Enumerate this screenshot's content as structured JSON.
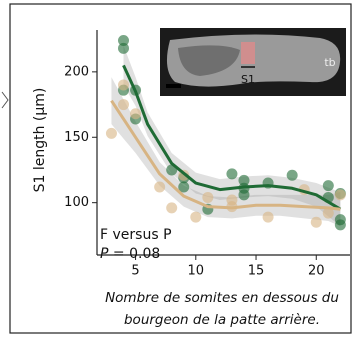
{
  "chart_data": {
    "type": "scatter",
    "y_label": "S1 length (μm)",
    "x_label": [
      "Nombre de somites en dessous du",
      "bourgeon de la patte arrière."
    ],
    "annotations": [
      "F versus P",
      "P = 0.08"
    ],
    "xlim": [
      1.8,
      22.8
    ],
    "ylim": [
      60,
      232
    ],
    "xticks": [
      5,
      10,
      15,
      20
    ],
    "yticks": [
      100,
      150,
      200
    ],
    "inset": {
      "labels": [
        "S1",
        "tb"
      ]
    },
    "series": [
      {
        "color": "#1f6b35",
        "x": [
          4,
          4,
          4,
          5,
          5,
          8,
          9,
          9,
          11,
          13,
          14,
          14,
          14,
          16,
          18,
          21,
          21,
          22,
          22,
          22
        ],
        "values": [
          224,
          218,
          186,
          186,
          164,
          125,
          112,
          119,
          95,
          122,
          117,
          111,
          106,
          115,
          121,
          113,
          104,
          107,
          87,
          83
        ],
        "fit_x": [
          4,
          5,
          6,
          8,
          10,
          12,
          14,
          16,
          18,
          20,
          22
        ],
        "fit_values": [
          205,
          185,
          160,
          130,
          115,
          110,
          112,
          113,
          111,
          106,
          95
        ],
        "band_lower": [
          190,
          174,
          151,
          122,
          107,
          102,
          104,
          105,
          103,
          97,
          82
        ],
        "band_upper": [
          220,
          196,
          169,
          138,
          123,
          118,
          120,
          121,
          119,
          115,
          108
        ]
      },
      {
        "color": "#d7b483",
        "x": [
          3,
          4,
          4,
          5,
          7,
          8,
          9,
          10,
          11,
          13,
          13,
          16,
          19,
          20,
          21,
          22
        ],
        "values": [
          153,
          190,
          175,
          168,
          112,
          96,
          121,
          89,
          104,
          102,
          97,
          89,
          110,
          85,
          92,
          106
        ],
        "fit_x": [
          3,
          5,
          7,
          9,
          11,
          13,
          15,
          17,
          19,
          21,
          22
        ],
        "fit_values": [
          178,
          150,
          122,
          105,
          97,
          96,
          98,
          98,
          97,
          96,
          95
        ],
        "band_lower": [
          160,
          138,
          113,
          97,
          89,
          88,
          90,
          90,
          88,
          86,
          82
        ],
        "band_upper": [
          196,
          162,
          131,
          113,
          105,
          104,
          106,
          106,
          106,
          106,
          108
        ]
      }
    ]
  }
}
